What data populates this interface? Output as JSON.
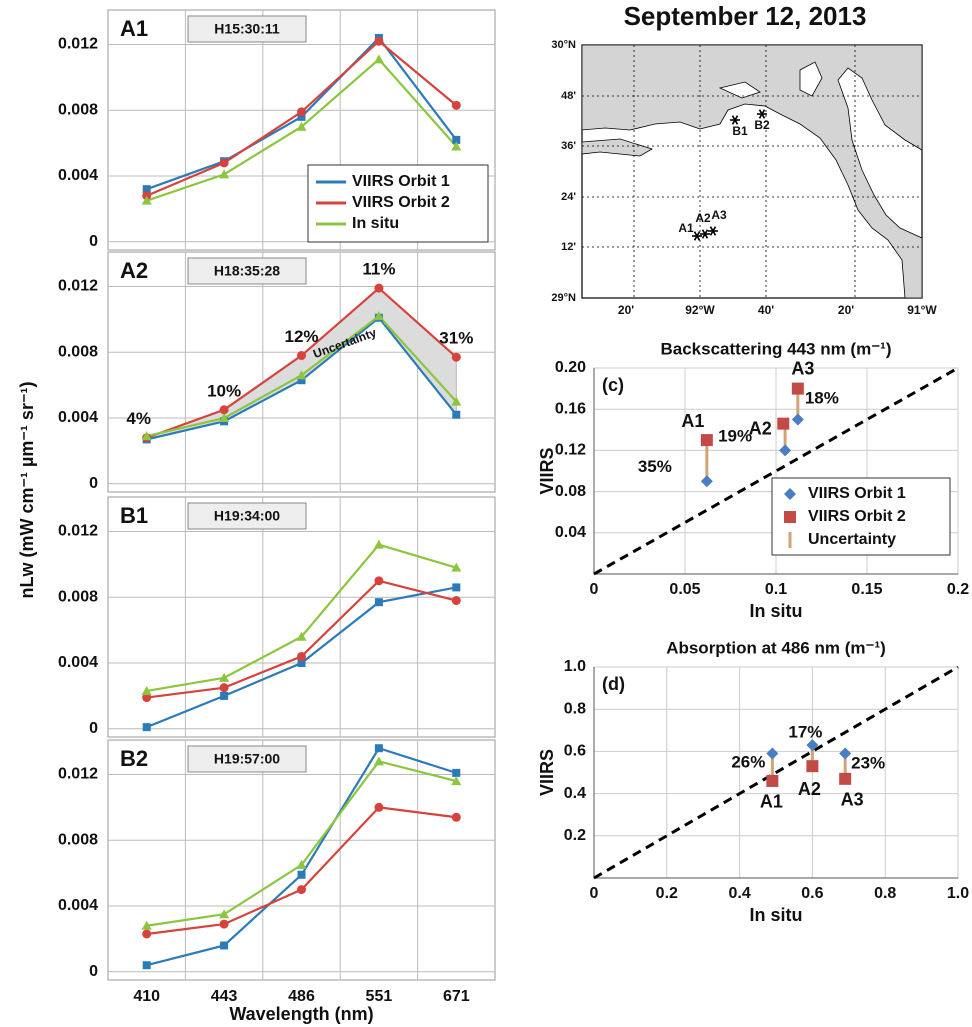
{
  "chart_data": [
    {
      "type": "line",
      "title": "A1",
      "subtitle": "H15:30:11",
      "ylim": [
        -0.0005,
        0.0141
      ],
      "yticks": [
        0,
        0.004,
        0.008,
        0.012
      ],
      "grid": true,
      "legend": "lower right",
      "series": [
        {
          "name": "VIIRS Orbit 1",
          "color": "#2b7bb9",
          "marker": "square",
          "values": [
            0.0032,
            0.0049,
            0.0076,
            0.0124,
            0.0062
          ]
        },
        {
          "name": "VIIRS Orbit 2",
          "color": "#d7423c",
          "marker": "circle",
          "values": [
            0.0028,
            0.0048,
            0.0079,
            0.0122,
            0.0083
          ]
        },
        {
          "name": "In situ",
          "color": "#8cc63e",
          "marker": "triangle",
          "values": [
            0.0025,
            0.0041,
            0.007,
            0.0111,
            0.0058
          ]
        }
      ]
    },
    {
      "type": "line",
      "title": "A2",
      "subtitle": "H18:35:28",
      "ylim": [
        -0.0005,
        0.0141
      ],
      "yticks": [
        0,
        0.004,
        0.008,
        0.012
      ],
      "grid": true,
      "ylabel": "nLw (mW cm⁻¹ µm⁻¹ sr⁻¹)",
      "annotation": "Uncertainty",
      "shade": "#dcdcdc",
      "uncertainty": {
        "values": [
          4,
          10,
          12,
          11,
          31
        ],
        "value_labels": [
          "4%",
          "10%",
          "12%",
          "11%",
          "31%"
        ]
      },
      "series": [
        {
          "color": "#2b7bb9",
          "marker": "square",
          "values": [
            0.0027,
            0.0038,
            0.0063,
            0.0101,
            0.0042
          ]
        },
        {
          "color": "#d7423c",
          "marker": "circle",
          "values": [
            0.0028,
            0.0045,
            0.0078,
            0.0119,
            0.0077
          ]
        },
        {
          "color": "#8cc63e",
          "marker": "triangle",
          "values": [
            0.0029,
            0.004,
            0.0066,
            0.0102,
            0.005
          ]
        }
      ]
    },
    {
      "type": "line",
      "title": "B1",
      "subtitle": "H19:34:00",
      "ylim": [
        -0.0005,
        0.0141
      ],
      "yticks": [
        0,
        0.004,
        0.008,
        0.012
      ],
      "grid": true,
      "series": [
        {
          "color": "#2b7bb9",
          "marker": "square",
          "values": [
            0.0001,
            0.002,
            0.004,
            0.0077,
            0.0086
          ]
        },
        {
          "color": "#d7423c",
          "marker": "circle",
          "values": [
            0.0019,
            0.0025,
            0.0044,
            0.009,
            0.0078
          ]
        },
        {
          "color": "#8cc63e",
          "marker": "triangle",
          "values": [
            0.0023,
            0.0031,
            0.0056,
            0.0112,
            0.0098
          ]
        }
      ]
    },
    {
      "type": "line",
      "title": "B2",
      "subtitle": "H19:57:00",
      "ylim": [
        -0.0005,
        0.0141
      ],
      "yticks": [
        0,
        0.004,
        0.008,
        0.012
      ],
      "grid": true,
      "categories": [
        "410",
        "443",
        "486",
        "551",
        "671"
      ],
      "xlabel": "Wavelength (nm)",
      "series": [
        {
          "color": "#2b7bb9",
          "marker": "square",
          "values": [
            0.0004,
            0.0016,
            0.0059,
            0.0136,
            0.0121
          ]
        },
        {
          "color": "#d7423c",
          "marker": "circle",
          "values": [
            0.0023,
            0.0029,
            0.005,
            0.01,
            0.0094
          ]
        },
        {
          "color": "#8cc63e",
          "marker": "triangle",
          "values": [
            0.0028,
            0.0035,
            0.0065,
            0.0128,
            0.0116
          ]
        }
      ]
    },
    {
      "type": "scatter",
      "title": "Backscattering 443 nm (m⁻¹)",
      "panel": "(c)",
      "xlabel": "In situ",
      "ylabel": "VIIRS",
      "xlim": [
        0,
        0.2
      ],
      "ylim": [
        0,
        0.2
      ],
      "xticks": [
        0,
        0.05,
        0.1,
        0.15,
        0.2
      ],
      "yticks": [
        0.04,
        0.08,
        0.12,
        0.16,
        {
          "value": 0.2,
          "label": "0.20"
        }
      ],
      "grid": true,
      "one_to_one": true,
      "legend": "lower right",
      "points": [
        "A1",
        "A2",
        "A3"
      ],
      "series": [
        {
          "name": "VIIRS Orbit 1",
          "color": "#4a7ec4",
          "marker": "diamond",
          "x": [
            0.062,
            0.105,
            0.112
          ],
          "y": [
            0.09,
            0.12,
            0.15
          ]
        },
        {
          "name": "VIIRS Orbit 2",
          "color": "#c24b48",
          "marker": "square",
          "x": [
            0.062,
            0.104,
            0.112
          ],
          "y": [
            0.13,
            0.146,
            0.18
          ]
        }
      ],
      "uncertainty": {
        "name": "Uncertainty",
        "color": "#d4a373",
        "values": [
          35,
          19,
          18
        ],
        "value_labels": [
          "35%",
          "19%",
          "18%"
        ]
      }
    },
    {
      "type": "scatter",
      "title": "Absorption at 486 nm (m⁻¹)",
      "panel": "(d)",
      "xlabel": "In situ",
      "ylabel": "VIIRS",
      "xlim": [
        0,
        1
      ],
      "ylim": [
        0,
        1
      ],
      "xticks": [
        0,
        0.2,
        0.4,
        0.6,
        0.8,
        {
          "value": 1,
          "label": "1.0"
        }
      ],
      "yticks": [
        0.2,
        0.4,
        0.6,
        0.8,
        {
          "value": 1,
          "label": "1.0"
        }
      ],
      "grid": true,
      "one_to_one": true,
      "points": [
        "A1",
        "A2",
        "A3"
      ],
      "series": [
        {
          "color": "#4a7ec4",
          "marker": "diamond",
          "x": [
            0.49,
            0.6,
            0.69
          ],
          "y": [
            0.59,
            0.63,
            0.59
          ]
        },
        {
          "color": "#c24b48",
          "marker": "square",
          "x": [
            0.49,
            0.6,
            0.69
          ],
          "y": [
            0.46,
            0.53,
            0.47
          ]
        }
      ],
      "uncertainty": {
        "color": "#d4a373",
        "values": [
          26,
          17,
          23
        ],
        "value_labels": [
          "26%",
          "17%",
          "23%"
        ]
      }
    }
  ],
  "map": {
    "title": "September 12, 2013",
    "lat_labels": [
      "30°N",
      "48'",
      "36'",
      "24'",
      "12'",
      "29°N"
    ],
    "lon_labels": [
      "20'",
      "92°W",
      "40'",
      "20'",
      "91°W"
    ],
    "stations": [
      "A1",
      "A2",
      "A3",
      "B1",
      "B2"
    ]
  }
}
